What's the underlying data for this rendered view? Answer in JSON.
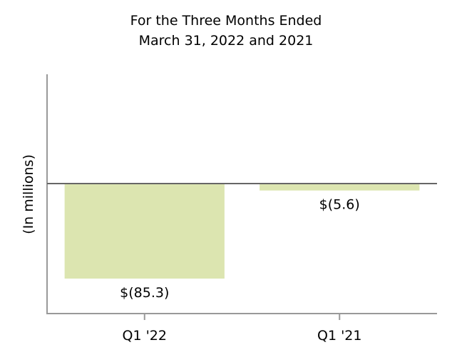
{
  "chart_data": {
    "type": "bar",
    "title": "For the Three Months Ended\nMarch 31, 2022 and 2021",
    "title_lines": [
      "For the Three Months Ended",
      "March 31, 2022 and 2021"
    ],
    "xlabel": "",
    "ylabel": "(In millions)",
    "categories": [
      "Q1 '22",
      "Q1 '21"
    ],
    "values": [
      -85.3,
      -5.6
    ],
    "data_labels": [
      "$(85.3)",
      "$(5.6)"
    ],
    "ylim": [
      -117.6,
      98.9
    ],
    "grid": false,
    "legend": "none",
    "colors": {
      "bar": "#dce5b0",
      "axis": "#999999",
      "zero_line": "#666666"
    }
  }
}
